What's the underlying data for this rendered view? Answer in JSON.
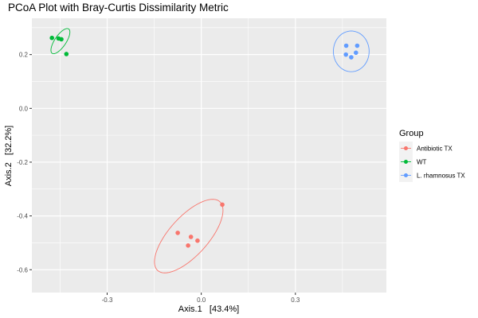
{
  "chart_data": {
    "type": "scatter",
    "title": "PCoA Plot with Bray-Curtis Dissimilarity Metric",
    "xlabel": "Axis.1   [43.4%]",
    "ylabel": "Axis.2   [32.2%]",
    "xlim": [
      -0.54,
      0.59
    ],
    "ylim": [
      -0.685,
      0.335
    ],
    "x_ticks": [
      -0.3,
      0.0,
      0.3
    ],
    "x_tick_labels": [
      "-0.3",
      "0.0",
      "0.3"
    ],
    "y_ticks": [
      0.2,
      0.0,
      -0.2,
      -0.4,
      -0.6
    ],
    "y_tick_labels": [
      "0.2",
      "0.0",
      "-0.2",
      "-0.4",
      "-0.6"
    ],
    "grid": true,
    "legend": {
      "title": "Group",
      "placement": "right"
    },
    "series": [
      {
        "name": "Antibiotic TX",
        "color": "#F8766D",
        "points": [
          [
            0.067,
            -0.358
          ],
          [
            -0.075,
            -0.463
          ],
          [
            -0.033,
            -0.478
          ],
          [
            -0.012,
            -0.492
          ],
          [
            -0.042,
            -0.51
          ]
        ],
        "ellipse": {
          "cx": -0.04,
          "cy": -0.475,
          "rx": 0.148,
          "ry": 0.062,
          "angle_deg": 48
        }
      },
      {
        "name": "WT",
        "color": "#00BA38",
        "points": [
          [
            -0.476,
            0.262
          ],
          [
            -0.455,
            0.26
          ],
          [
            -0.446,
            0.257
          ],
          [
            -0.43,
            0.202
          ]
        ],
        "ellipse": {
          "cx": -0.449,
          "cy": 0.25,
          "rx": 0.047,
          "ry": 0.018,
          "angle_deg": 56
        }
      },
      {
        "name": "L. rhamnosus TX",
        "color": "#619CFF",
        "points": [
          [
            0.462,
            0.233
          ],
          [
            0.497,
            0.233
          ],
          [
            0.461,
            0.2
          ],
          [
            0.493,
            0.207
          ],
          [
            0.478,
            0.19
          ]
        ],
        "ellipse": {
          "cx": 0.478,
          "cy": 0.212,
          "rx": 0.057,
          "ry": 0.065,
          "angle_deg": 0
        }
      }
    ]
  }
}
